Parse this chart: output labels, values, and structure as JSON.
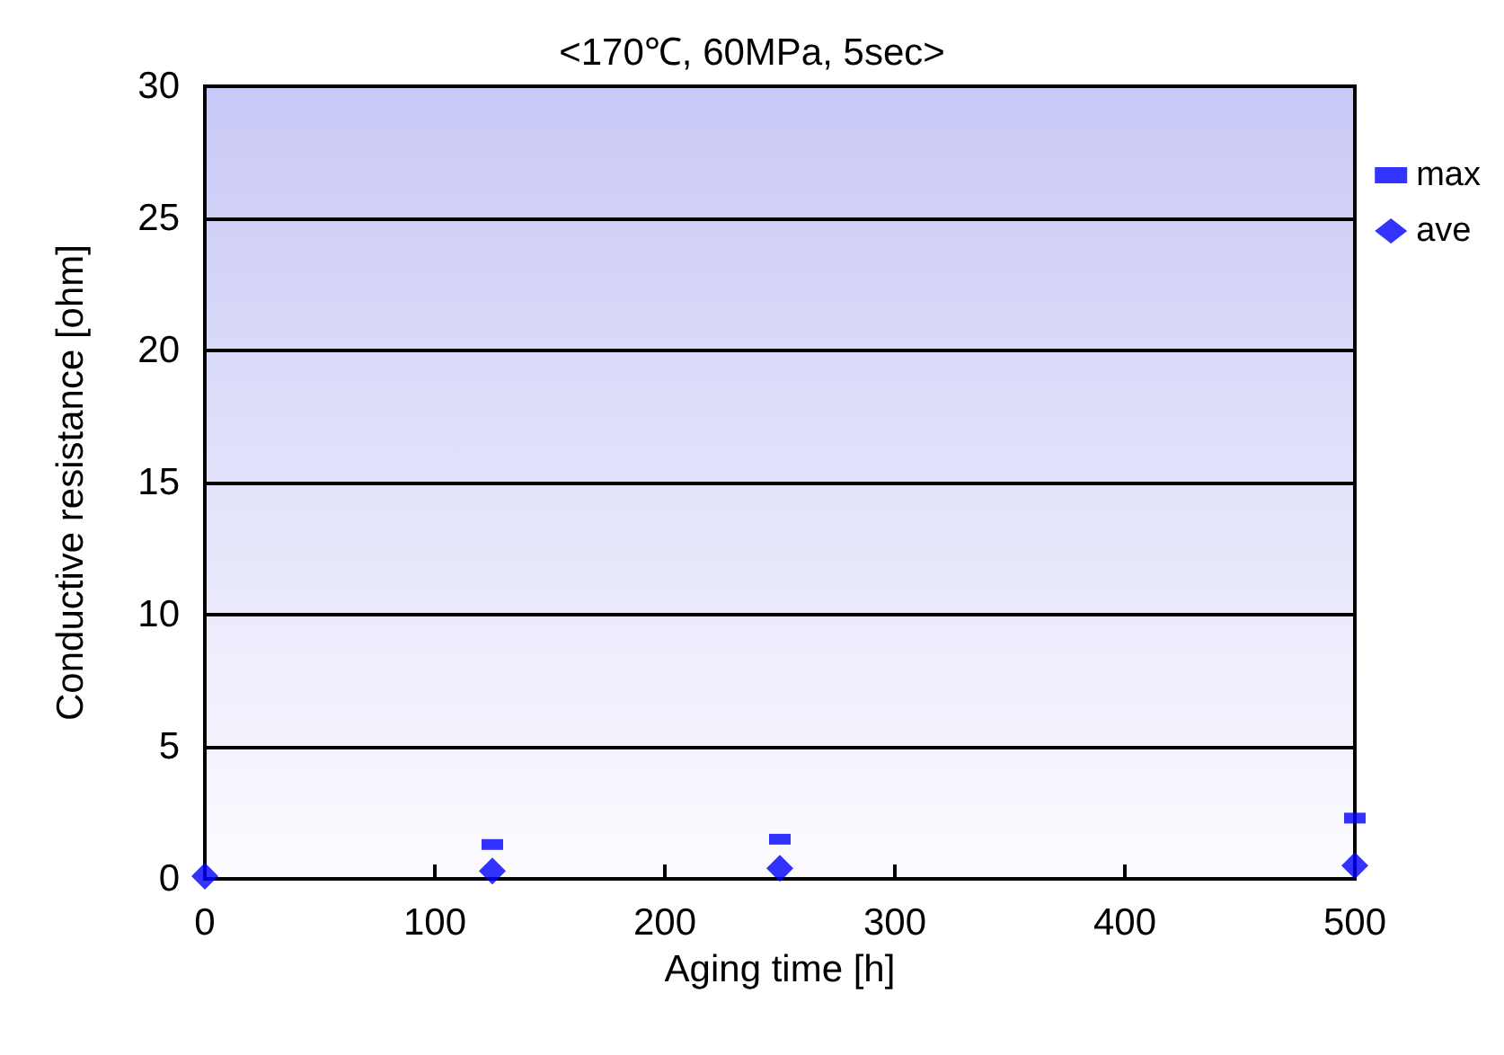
{
  "chart_data": {
    "type": "scatter",
    "title": "<170℃, 60MPa, 5sec>",
    "xlabel": "Aging time [h]",
    "ylabel": "Conductive resistance [ohm]",
    "x": [
      0,
      125,
      250,
      500
    ],
    "series": [
      {
        "name": "max",
        "color": "#0000ff",
        "marker": "square",
        "values": [
          null,
          1.3,
          1.5,
          2.3
        ]
      },
      {
        "name": "ave",
        "color": "#0000ff",
        "marker": "diamond",
        "values": [
          0.1,
          0.3,
          0.4,
          0.5
        ]
      }
    ],
    "xlim": [
      0,
      500
    ],
    "xticks": [
      0,
      100,
      200,
      300,
      400,
      500
    ],
    "ylim": [
      0,
      30
    ],
    "yticks": [
      0,
      5,
      10,
      15,
      20,
      25,
      30
    ],
    "grid": "y",
    "legend": "right"
  }
}
